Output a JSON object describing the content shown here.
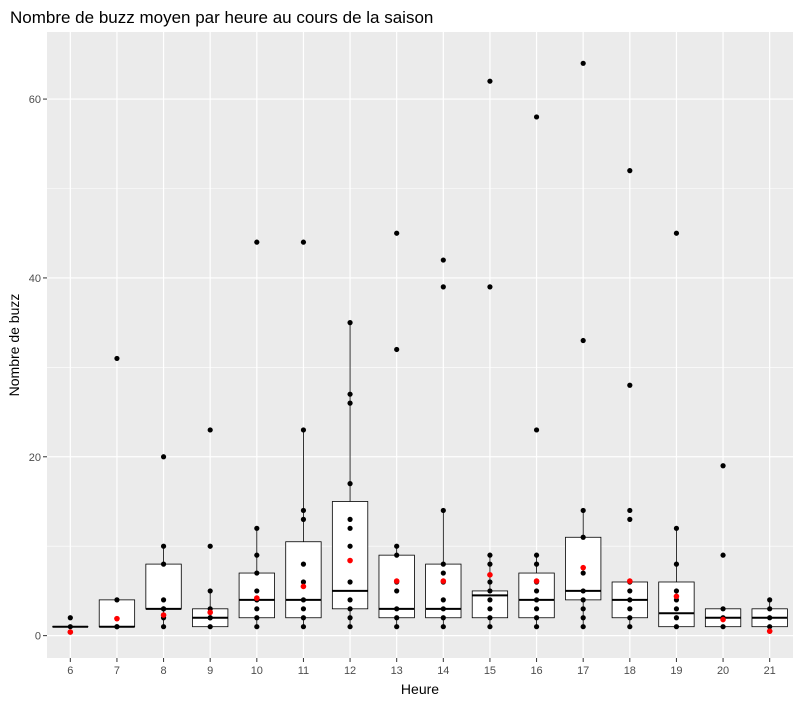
{
  "chart_data": {
    "type": "boxplot",
    "title": "Nombre de buzz moyen par heure au cours de la saison",
    "xlabel": "Heure",
    "ylabel": "Nombre de buzz",
    "ylim": [
      -2.5,
      67.5
    ],
    "yticks": [
      0,
      20,
      40,
      60
    ],
    "grid": true,
    "legend": "none",
    "colors": {
      "panel": "#ebebeb",
      "grid": "#ffffff",
      "box_fill": "#ffffff",
      "box_line": "#000000",
      "point": "#000000",
      "mean_point": "#ff0000"
    },
    "categories": [
      "6",
      "7",
      "8",
      "9",
      "10",
      "11",
      "12",
      "13",
      "14",
      "15",
      "16",
      "17",
      "18",
      "19",
      "20",
      "21"
    ],
    "groups": [
      {
        "hour": "6",
        "box": {
          "low": 1,
          "q1": 1,
          "median": 1,
          "q3": 1,
          "high": 1
        },
        "mean": 0.4,
        "points": [
          0.4,
          1,
          2
        ]
      },
      {
        "hour": "7",
        "box": {
          "low": 1,
          "q1": 1,
          "median": 1,
          "q3": 4,
          "high": 4
        },
        "mean": 1.9,
        "points": [
          1,
          1,
          4,
          31
        ]
      },
      {
        "hour": "8",
        "box": {
          "low": 1,
          "q1": 3,
          "median": 3,
          "q3": 8,
          "high": 10
        },
        "mean": 2.3,
        "points": [
          1,
          2,
          3,
          3,
          4,
          8,
          10,
          20
        ]
      },
      {
        "hour": "9",
        "box": {
          "low": 1,
          "q1": 1,
          "median": 2,
          "q3": 3,
          "high": 5
        },
        "mean": 2.6,
        "points": [
          1,
          2,
          2,
          3,
          5,
          10,
          23
        ]
      },
      {
        "hour": "10",
        "box": {
          "low": 1,
          "q1": 2,
          "median": 4,
          "q3": 7,
          "high": 12
        },
        "mean": 4.2,
        "points": [
          1,
          2,
          3,
          4,
          5,
          7,
          9,
          12,
          44
        ]
      },
      {
        "hour": "11",
        "box": {
          "low": 1,
          "q1": 2,
          "median": 4,
          "q3": 10.5,
          "high": 23
        },
        "mean": 5.5,
        "points": [
          1,
          2,
          3,
          4,
          6,
          8,
          13,
          14,
          23,
          44
        ]
      },
      {
        "hour": "12",
        "box": {
          "low": 1,
          "q1": 3,
          "median": 5,
          "q3": 15,
          "high": 35
        },
        "mean": 8.4,
        "points": [
          1,
          2,
          3,
          4,
          6,
          10,
          12,
          13,
          17,
          26,
          27,
          35
        ]
      },
      {
        "hour": "13",
        "box": {
          "low": 1,
          "q1": 2,
          "median": 3,
          "q3": 9,
          "high": 10
        },
        "mean": 6.1,
        "points": [
          1,
          2,
          3,
          5,
          6,
          9,
          10,
          32,
          45
        ]
      },
      {
        "hour": "14",
        "box": {
          "low": 1,
          "q1": 2,
          "median": 3,
          "q3": 8,
          "high": 14
        },
        "mean": 6.1,
        "points": [
          1,
          2,
          3,
          4,
          6,
          7,
          8,
          14,
          39,
          42
        ]
      },
      {
        "hour": "15",
        "box": {
          "low": 1,
          "q1": 2,
          "median": 4.5,
          "q3": 5,
          "high": 9
        },
        "mean": 6.8,
        "points": [
          1,
          2,
          3,
          4,
          5,
          6,
          8,
          9,
          39,
          62
        ]
      },
      {
        "hour": "16",
        "box": {
          "low": 1,
          "q1": 2,
          "median": 4,
          "q3": 7,
          "high": 9
        },
        "mean": 6.1,
        "points": [
          1,
          2,
          3,
          4,
          5,
          6,
          8,
          9,
          23,
          58
        ]
      },
      {
        "hour": "17",
        "box": {
          "low": 1,
          "q1": 4,
          "median": 5,
          "q3": 11,
          "high": 14
        },
        "mean": 7.6,
        "points": [
          1,
          2,
          3,
          4,
          5,
          7,
          11,
          14,
          33,
          64
        ]
      },
      {
        "hour": "18",
        "box": {
          "low": 1,
          "q1": 2,
          "median": 4,
          "q3": 6,
          "high": 6
        },
        "mean": 6.1,
        "points": [
          1,
          2,
          3,
          4,
          5,
          6,
          13,
          14,
          28,
          52
        ]
      },
      {
        "hour": "19",
        "box": {
          "low": 1,
          "q1": 1,
          "median": 2.5,
          "q3": 6,
          "high": 12
        },
        "mean": 4.4,
        "points": [
          1,
          2,
          3,
          4,
          5,
          8,
          12,
          45
        ]
      },
      {
        "hour": "20",
        "box": {
          "low": 1,
          "q1": 1,
          "median": 2,
          "q3": 3,
          "high": 3
        },
        "mean": 1.8,
        "points": [
          1,
          2,
          3,
          9,
          19
        ]
      },
      {
        "hour": "21",
        "box": {
          "low": 1,
          "q1": 1,
          "median": 2,
          "q3": 3,
          "high": 4
        },
        "mean": 0.5,
        "points": [
          0.5,
          1,
          2,
          3,
          4
        ]
      }
    ]
  }
}
